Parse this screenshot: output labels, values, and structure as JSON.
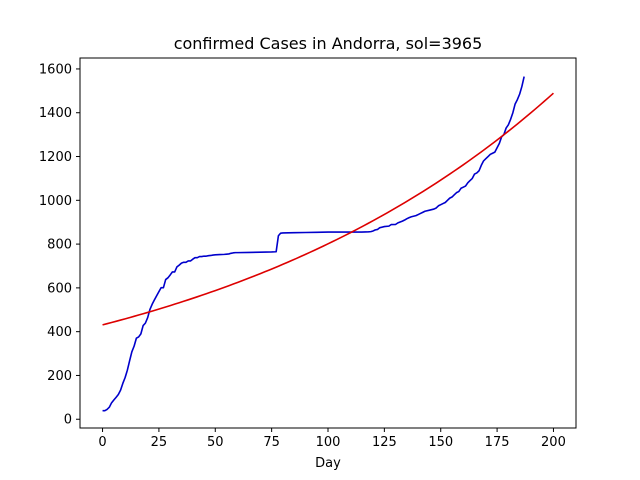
{
  "chart_data": {
    "type": "line",
    "title": "confirmed Cases in Andorra, sol=3965",
    "xlabel": "Day",
    "ylabel": "",
    "xlim": [
      -10,
      210
    ],
    "ylim": [
      -40,
      1650
    ],
    "xticks": [
      0,
      25,
      50,
      75,
      100,
      125,
      150,
      175,
      200
    ],
    "yticks": [
      0,
      200,
      400,
      600,
      800,
      1000,
      1200,
      1400,
      1600
    ],
    "grid": false,
    "legend": "none",
    "series": [
      {
        "color": "#0000cc",
        "points": [
          [
            0,
            39
          ],
          [
            1,
            39
          ],
          [
            2,
            45
          ],
          [
            3,
            55
          ],
          [
            4,
            75
          ],
          [
            5,
            88
          ],
          [
            6,
            100
          ],
          [
            7,
            113
          ],
          [
            8,
            133
          ],
          [
            9,
            164
          ],
          [
            10,
            190
          ],
          [
            11,
            224
          ],
          [
            12,
            267
          ],
          [
            13,
            308
          ],
          [
            14,
            334
          ],
          [
            15,
            370
          ],
          [
            16,
            376
          ],
          [
            17,
            390
          ],
          [
            18,
            428
          ],
          [
            19,
            439
          ],
          [
            20,
            464
          ],
          [
            21,
            501
          ],
          [
            22,
            525
          ],
          [
            23,
            545
          ],
          [
            24,
            564
          ],
          [
            25,
            583
          ],
          [
            26,
            601
          ],
          [
            27,
            601
          ],
          [
            28,
            638
          ],
          [
            29,
            646
          ],
          [
            30,
            659
          ],
          [
            31,
            673
          ],
          [
            32,
            673
          ],
          [
            33,
            696
          ],
          [
            34,
            704
          ],
          [
            35,
            713
          ],
          [
            36,
            717
          ],
          [
            37,
            717
          ],
          [
            38,
            723
          ],
          [
            39,
            723
          ],
          [
            40,
            731
          ],
          [
            41,
            738
          ],
          [
            42,
            738
          ],
          [
            43,
            743
          ],
          [
            44,
            743
          ],
          [
            45,
            745
          ],
          [
            46,
            745
          ],
          [
            47,
            747
          ],
          [
            48,
            748
          ],
          [
            49,
            750
          ],
          [
            50,
            751
          ],
          [
            52,
            752
          ],
          [
            54,
            753
          ],
          [
            55,
            754
          ],
          [
            56,
            755
          ],
          [
            57,
            758
          ],
          [
            58,
            760
          ],
          [
            59,
            761
          ],
          [
            60,
            761
          ],
          [
            65,
            762
          ],
          [
            70,
            763
          ],
          [
            75,
            764
          ],
          [
            77,
            765
          ],
          [
            78,
            838
          ],
          [
            79,
            850
          ],
          [
            80,
            851
          ],
          [
            85,
            852
          ],
          [
            90,
            853
          ],
          [
            95,
            854
          ],
          [
            100,
            855
          ],
          [
            105,
            855
          ],
          [
            110,
            855
          ],
          [
            115,
            855
          ],
          [
            118,
            856
          ],
          [
            119,
            857
          ],
          [
            120,
            860
          ],
          [
            121,
            865
          ],
          [
            122,
            867
          ],
          [
            123,
            875
          ],
          [
            125,
            880
          ],
          [
            127,
            882
          ],
          [
            128,
            889
          ],
          [
            130,
            890
          ],
          [
            131,
            897
          ],
          [
            132,
            901
          ],
          [
            133,
            905
          ],
          [
            134,
            910
          ],
          [
            135,
            916
          ],
          [
            136,
            921
          ],
          [
            137,
            925
          ],
          [
            139,
            930
          ],
          [
            140,
            935
          ],
          [
            141,
            940
          ],
          [
            142,
            945
          ],
          [
            143,
            950
          ],
          [
            145,
            955
          ],
          [
            147,
            960
          ],
          [
            148,
            965
          ],
          [
            149,
            975
          ],
          [
            150,
            980
          ],
          [
            151,
            985
          ],
          [
            152,
            990
          ],
          [
            153,
            1000
          ],
          [
            154,
            1010
          ],
          [
            155,
            1015
          ],
          [
            156,
            1025
          ],
          [
            157,
            1035
          ],
          [
            158,
            1040
          ],
          [
            159,
            1055
          ],
          [
            160,
            1060
          ],
          [
            161,
            1065
          ],
          [
            162,
            1080
          ],
          [
            163,
            1090
          ],
          [
            164,
            1100
          ],
          [
            165,
            1120
          ],
          [
            166,
            1125
          ],
          [
            167,
            1135
          ],
          [
            168,
            1160
          ],
          [
            169,
            1180
          ],
          [
            170,
            1190
          ],
          [
            171,
            1200
          ],
          [
            172,
            1210
          ],
          [
            173,
            1215
          ],
          [
            174,
            1220
          ],
          [
            175,
            1240
          ],
          [
            176,
            1260
          ],
          [
            177,
            1290
          ],
          [
            178,
            1300
          ],
          [
            179,
            1330
          ],
          [
            180,
            1345
          ],
          [
            181,
            1370
          ],
          [
            182,
            1400
          ],
          [
            183,
            1440
          ],
          [
            184,
            1460
          ],
          [
            185,
            1485
          ],
          [
            186,
            1520
          ],
          [
            187,
            1565
          ]
        ]
      },
      {
        "color": "#dd0000",
        "function": "exponential",
        "params": {
          "a": 431,
          "b": 0.0062
        },
        "x_range": [
          0,
          200
        ]
      }
    ]
  }
}
